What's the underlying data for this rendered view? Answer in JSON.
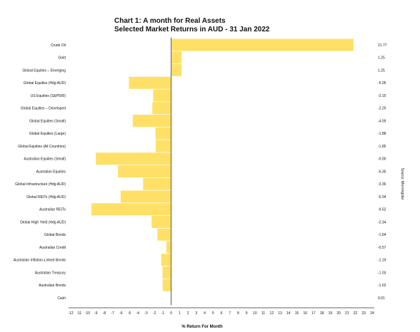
{
  "header": {
    "title": "Chart 1: A month for Real Assets",
    "subtitle": "Selected Market Returns in AUD - 31 Jan 2022"
  },
  "source": "Source: Morningstar",
  "chart_data": {
    "type": "bar",
    "orientation": "horizontal",
    "title": "Chart 1: A month for Real Assets",
    "subtitle": "Selected Market Returns in AUD - 31 Jan 2022",
    "xlabel": "% Return For Month",
    "ylabel": "",
    "xlim": [
      -12,
      24
    ],
    "xticks": [
      -12,
      -11,
      -10,
      -9,
      -8,
      -7,
      -6,
      -5,
      -4,
      -3,
      -2,
      -1,
      0,
      1,
      2,
      3,
      4,
      5,
      6,
      7,
      8,
      9,
      10,
      11,
      12,
      13,
      14,
      15,
      16,
      17,
      18,
      19,
      20,
      21,
      22,
      23,
      24
    ],
    "grid": false,
    "bar_color": "#ffe066",
    "categories": [
      "Crude Oil",
      "Gold",
      "Global Equities – Emerging",
      "Global Equities (Hdg AUD)",
      "US Equities (S&P500)",
      "Global Equities – Developed",
      "Global Equities (Small)",
      "Global Equities (Large)",
      "Global Equities (All Countries)",
      "Australian Equities (Small)",
      "Australian Equities",
      "Global Infrastructure (Hdg AUD)",
      "Global REITs (Hdg AUD)",
      "Australian REITs",
      "Global High Yield (Hdg AUD)",
      "Global Bonds",
      "Australian Credit",
      "Australian Inflation-Linked Bonds",
      "Australian Treasury",
      "Australian Bonds",
      "Cash"
    ],
    "values": [
      21.77,
      1.25,
      1.25,
      -5.05,
      -2.15,
      -2.25,
      -4.59,
      -1.88,
      -1.85,
      -9.0,
      -6.35,
      -3.36,
      -6.04,
      -9.52,
      -2.34,
      -1.64,
      -0.57,
      -1.19,
      -1.03,
      -1.02,
      0.01
    ],
    "value_labels": [
      "21.77",
      "1.25",
      "1.25",
      "-5.05",
      "-2.15",
      "-2.25",
      "-4.59",
      "-1.88",
      "-1.85",
      "-9.00",
      "-6.35",
      "-3.36",
      "-6.04",
      "-9.52",
      "-2.34",
      "-1.64",
      "-0.57",
      "-1.19",
      "-1.03",
      "-1.02",
      "0.01"
    ]
  }
}
